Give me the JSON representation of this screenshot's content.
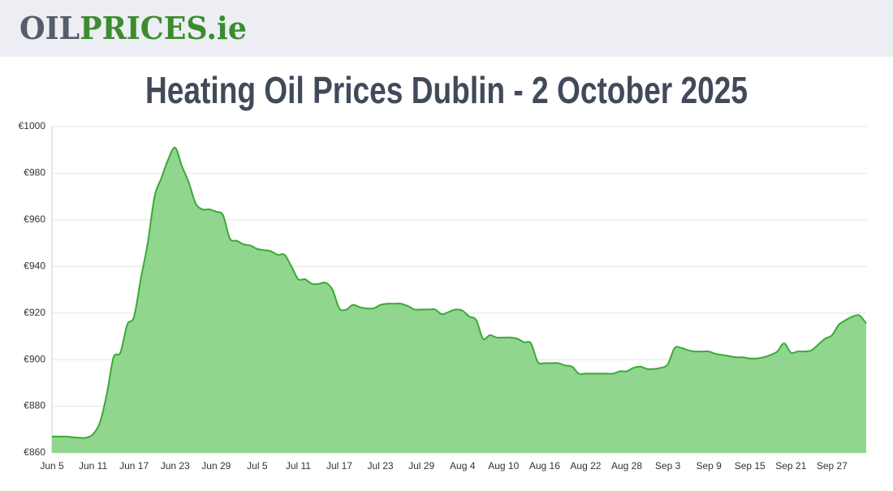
{
  "header": {
    "logo": [
      "OIL",
      "PRICES.ie"
    ]
  },
  "chart_data": {
    "type": "area",
    "title": "Heating Oil Prices Dublin - 2 October 2025",
    "categories": [
      "Jun 5",
      null,
      null,
      null,
      null,
      null,
      "Jun 11",
      null,
      null,
      null,
      null,
      null,
      "Jun 17",
      null,
      null,
      null,
      null,
      null,
      "Jun 23",
      null,
      null,
      null,
      null,
      null,
      "Jun 29",
      null,
      null,
      null,
      null,
      null,
      "Jul 5",
      null,
      null,
      null,
      null,
      null,
      "Jul 11",
      null,
      null,
      null,
      null,
      null,
      "Jul 17",
      null,
      null,
      null,
      null,
      null,
      "Jul 23",
      null,
      null,
      null,
      null,
      null,
      "Jul 29",
      null,
      null,
      null,
      null,
      null,
      "Aug 4",
      null,
      null,
      null,
      null,
      null,
      "Aug 10",
      null,
      null,
      null,
      null,
      null,
      "Aug 16",
      null,
      null,
      null,
      null,
      null,
      "Aug 22",
      null,
      null,
      null,
      null,
      null,
      "Aug 28",
      null,
      null,
      null,
      null,
      null,
      "Sep 3",
      null,
      null,
      null,
      null,
      null,
      "Sep 9",
      null,
      null,
      null,
      null,
      null,
      "Sep 15",
      null,
      null,
      null,
      null,
      null,
      "Sep 21",
      null,
      null,
      null,
      null,
      null,
      "Sep 27",
      null,
      null,
      null,
      null,
      null
    ],
    "values": [
      867,
      867,
      867,
      866.7,
      866.5,
      866.5,
      868,
      873,
      885,
      901,
      903,
      915,
      918.5,
      935,
      950,
      970,
      978,
      986,
      991,
      983,
      976,
      967,
      964.5,
      964.5,
      963.5,
      962,
      952,
      951,
      949.5,
      949,
      947.5,
      947,
      946.5,
      945,
      945,
      940,
      934.5,
      934.5,
      932.5,
      932.5,
      933,
      930,
      922,
      921.5,
      923.5,
      922.5,
      922,
      922,
      923.5,
      924,
      924,
      924,
      923,
      921.5,
      921.5,
      921.5,
      921.5,
      919.5,
      920.5,
      921.5,
      921,
      918.5,
      917,
      909,
      910.5,
      909.5,
      909.5,
      909.5,
      909,
      907.5,
      907,
      899,
      898.5,
      898.5,
      898.5,
      897.5,
      897,
      894,
      894,
      894,
      894,
      894,
      894,
      895,
      895,
      896.5,
      897,
      896,
      896,
      896.5,
      898,
      905,
      905,
      904,
      903.5,
      903.5,
      903.5,
      902.5,
      902,
      901.5,
      901,
      901,
      900.5,
      900.5,
      901,
      902,
      903.5,
      907,
      903,
      903.5,
      903.5,
      904,
      906.5,
      909,
      910.5,
      915,
      917,
      918.5,
      919,
      915.5
    ],
    "color": "#3aaa35",
    "fill": "#90d68e",
    "ylim": [
      860,
      1000
    ],
    "yticks": [
      {
        "value": 860,
        "label": "€860"
      },
      {
        "value": 880,
        "label": "€880"
      },
      {
        "value": 900,
        "label": "€900"
      },
      {
        "value": 920,
        "label": "€920"
      },
      {
        "value": 940,
        "label": "€940"
      },
      {
        "value": 960,
        "label": "€960"
      },
      {
        "value": 980,
        "label": "€980"
      },
      {
        "value": 1000,
        "label": "€1000"
      }
    ],
    "grid": true
  }
}
